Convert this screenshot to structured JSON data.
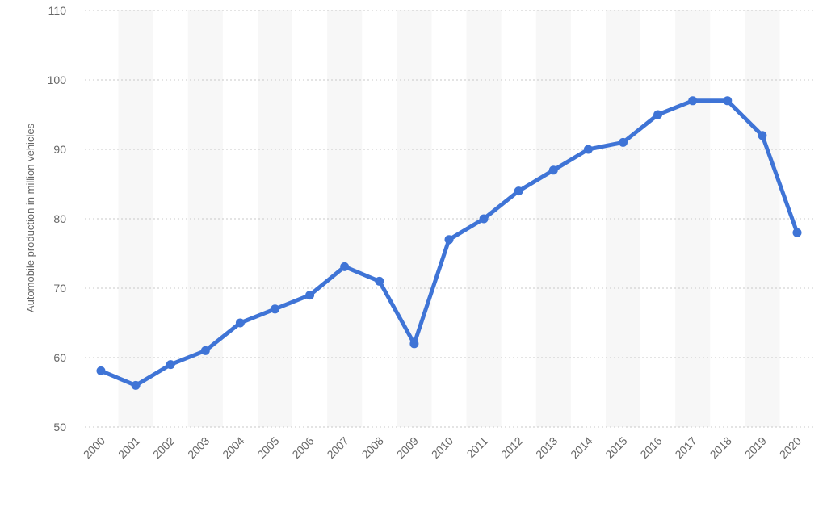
{
  "chart_data": {
    "type": "line",
    "title": "",
    "xlabel": "",
    "ylabel": "Automobile production in million vehicles",
    "categories": [
      "2000",
      "2001",
      "2002",
      "2003",
      "2004",
      "2005",
      "2006",
      "2007",
      "2008",
      "2009",
      "2010",
      "2011",
      "2012",
      "2013",
      "2014",
      "2015",
      "2016",
      "2017",
      "2018",
      "2019",
      "2020"
    ],
    "series": [
      {
        "values": [
          58.1,
          56.0,
          59.0,
          61.0,
          65.0,
          67.0,
          69.0,
          73.1,
          71.0,
          62.0,
          77.0,
          80.0,
          84.0,
          87.0,
          90.0,
          91.0,
          95.0,
          97.0,
          97.0,
          92.0,
          78.0
        ]
      }
    ],
    "ylim": [
      50,
      110
    ],
    "yticks": [
      50,
      60,
      70,
      80,
      90,
      100,
      110
    ],
    "grid": true,
    "line_color": "#3f74d6",
    "band_color": "#f7f7f7",
    "legend": "none"
  }
}
